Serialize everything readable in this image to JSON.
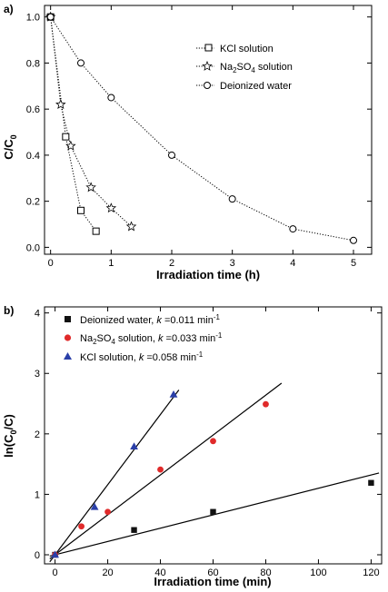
{
  "chart_data": [
    {
      "panel_label": "a)",
      "type": "scatter",
      "xlabel": "Irradiation time (h)",
      "ylabel": "C/C",
      "ylabel_sub": "0",
      "xlim": [
        -0.1,
        5.3
      ],
      "ylim": [
        -0.03,
        1.05
      ],
      "xticks": [
        0,
        1,
        2,
        3,
        4,
        5
      ],
      "yticks": [
        0.0,
        0.2,
        0.4,
        0.6,
        0.8,
        1.0
      ],
      "ytick_labels": [
        "0.0",
        "0.2",
        "0.4",
        "0.6",
        "0.8",
        "1.0"
      ],
      "legend_position": "top-right",
      "series": [
        {
          "name": "KCl solution",
          "marker": "square",
          "x": [
            0,
            0.25,
            0.5,
            0.75
          ],
          "y": [
            1.0,
            0.48,
            0.16,
            0.07
          ]
        },
        {
          "name": "Na2SO4 solution",
          "name_main": "Na",
          "name_sub1": "2",
          "name_mid": "SO",
          "name_sub2": "4",
          "name_end": " solution",
          "marker": "star",
          "x": [
            0,
            0.167,
            0.333,
            0.667,
            1.0,
            1.333
          ],
          "y": [
            1.0,
            0.62,
            0.44,
            0.26,
            0.17,
            0.09
          ]
        },
        {
          "name": "Deionized water",
          "marker": "circle",
          "x": [
            0,
            0.5,
            1.0,
            2.0,
            3.0,
            4.0,
            5.0
          ],
          "y": [
            1.0,
            0.8,
            0.65,
            0.4,
            0.21,
            0.08,
            0.03
          ]
        }
      ]
    },
    {
      "panel_label": "b)",
      "type": "scatter",
      "xlabel": "Irradiation time (min)",
      "ylabel": "ln(C",
      "ylabel_sub": "0",
      "ylabel_end": "/C)",
      "xlim": [
        -4,
        124
      ],
      "ylim": [
        -0.15,
        4.1
      ],
      "xticks": [
        0,
        20,
        40,
        60,
        80,
        100,
        120
      ],
      "yticks": [
        0,
        1,
        2,
        3,
        4
      ],
      "legend_position": "top-left",
      "series": [
        {
          "name": "Deionized water, k =0.011 min-1",
          "label_main": "Deionized water, ",
          "label_k": "k",
          "label_rest": " =0.011 min",
          "label_sup": "-1",
          "marker": "square",
          "color": "#111111",
          "x": [
            0,
            30,
            60,
            120
          ],
          "y": [
            0,
            0.41,
            0.71,
            1.19
          ],
          "fit_slope": 0.011,
          "fit_x_end": 123
        },
        {
          "name": "Na2SO4 solution, k =0.033 min-1",
          "label_pre": "Na",
          "label_sub1": "2",
          "label_mid": "SO",
          "label_sub2": "4",
          "label_main": " solution, ",
          "label_k": "k",
          "label_rest": " =0.033 min",
          "label_sup": "-1",
          "marker": "circle",
          "color": "#e02a2a",
          "x": [
            0,
            10,
            20,
            40,
            60,
            80
          ],
          "y": [
            0,
            0.47,
            0.71,
            1.41,
            1.88,
            2.49
          ],
          "fit_slope": 0.033,
          "fit_x_end": 86
        },
        {
          "name": "KCl solution, k =0.058 min-1",
          "label_main": "KCl solution, ",
          "label_k": "k",
          "label_rest": " =0.058 min",
          "label_sup": "-1",
          "marker": "triangle",
          "color": "#2a3fa8",
          "x": [
            0,
            15,
            30,
            45
          ],
          "y": [
            0,
            0.79,
            1.79,
            2.65
          ],
          "fit_slope": 0.058,
          "fit_x_end": 47
        }
      ]
    }
  ]
}
